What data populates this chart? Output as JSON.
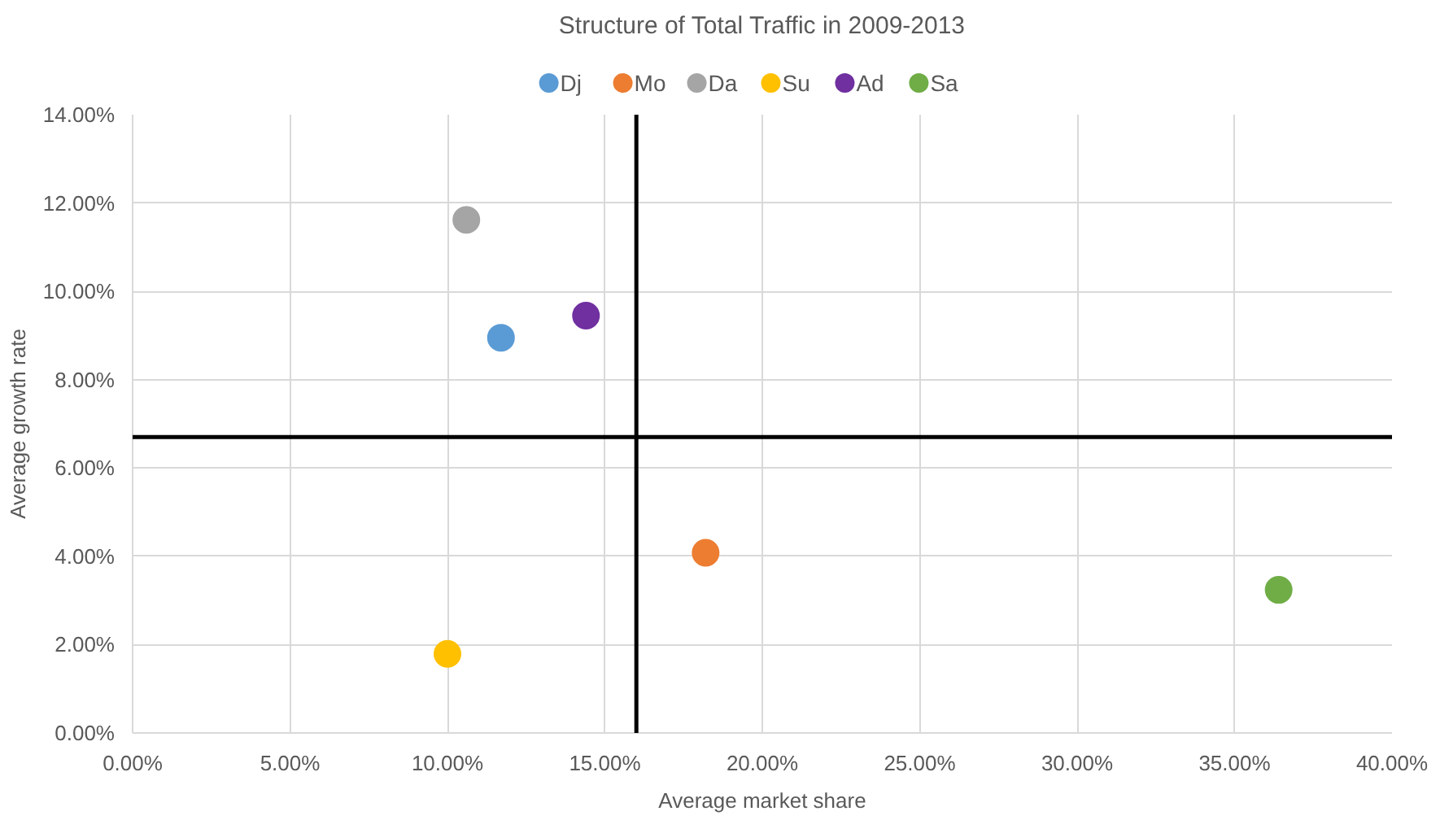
{
  "chart_data": {
    "type": "scatter",
    "title": "Structure of Total Traffic in 2009-2013",
    "xlabel": "Average market share",
    "ylabel": "Average growth rate",
    "series": [
      {
        "name": "Dj",
        "color": "#5b9bd5",
        "x": [
          11.7
        ],
        "values": [
          8.95
        ]
      },
      {
        "name": "Mo",
        "color": "#ed7d31",
        "x": [
          18.2
        ],
        "values": [
          4.08
        ]
      },
      {
        "name": "Da",
        "color": "#a5a5a5",
        "x": [
          10.6
        ],
        "values": [
          11.62
        ]
      },
      {
        "name": "Su",
        "color": "#ffc000",
        "x": [
          10.0
        ],
        "values": [
          1.79
        ]
      },
      {
        "name": "Ad",
        "color": "#7030a0",
        "x": [
          14.4
        ],
        "values": [
          9.45
        ]
      },
      {
        "name": "Sa",
        "color": "#70ad47",
        "x": [
          36.4
        ],
        "values": [
          3.24
        ]
      }
    ],
    "xlim": [
      0,
      40
    ],
    "ylim": [
      0,
      14
    ],
    "xticks": [
      {
        "value": 0,
        "label": "0.00%"
      },
      {
        "value": 5,
        "label": "5.00%"
      },
      {
        "value": 10,
        "label": "10.00%"
      },
      {
        "value": 15,
        "label": "15.00%"
      },
      {
        "value": 20,
        "label": "20.00%"
      },
      {
        "value": 25,
        "label": "25.00%"
      },
      {
        "value": 30,
        "label": "30.00%"
      },
      {
        "value": 35,
        "label": "35.00%"
      },
      {
        "value": 40,
        "label": "40.00%"
      }
    ],
    "yticks": [
      {
        "value": 0,
        "label": "0.00%"
      },
      {
        "value": 2,
        "label": "2.00%"
      },
      {
        "value": 4,
        "label": "4.00%"
      },
      {
        "value": 6,
        "label": "6.00%"
      },
      {
        "value": 8,
        "label": "8.00%"
      },
      {
        "value": 10,
        "label": "10.00%"
      },
      {
        "value": 12,
        "label": "12.00%"
      },
      {
        "value": 14,
        "label": "14.00%"
      }
    ],
    "ref_lines": [
      {
        "axis": "x",
        "value": 16.0,
        "color": "#000000"
      },
      {
        "axis": "y",
        "value": 6.7,
        "color": "#000000"
      }
    ],
    "grid": true,
    "legend": "top",
    "marker": "circle"
  }
}
